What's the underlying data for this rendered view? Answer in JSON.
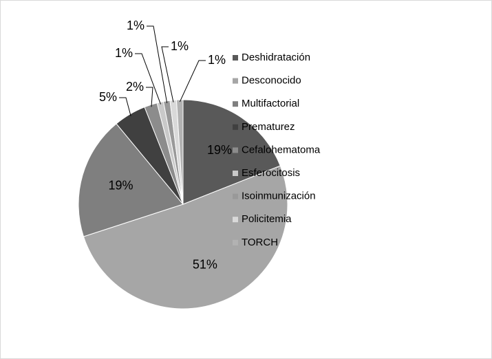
{
  "chart_data": {
    "type": "pie",
    "categories": [
      "Deshidratación",
      "Desconocido",
      "Multifactorial",
      "Prematurez",
      "Cefalohematoma",
      "Esferocitosis",
      "Isoinmunización",
      "Policitemia",
      "TORCH"
    ],
    "values": [
      19,
      51,
      19,
      5,
      2,
      1,
      1,
      1,
      1
    ],
    "value_labels": [
      "19%",
      "51%",
      "19%",
      "5%",
      "2%",
      "1%",
      "1%",
      "1%",
      "1%"
    ],
    "colors": [
      "#595959",
      "#a6a6a6",
      "#7f7f7f",
      "#404040",
      "#8c8c8c",
      "#c9c9c9",
      "#999999",
      "#d9d9d9",
      "#b2b2b2"
    ],
    "legend": "right"
  }
}
